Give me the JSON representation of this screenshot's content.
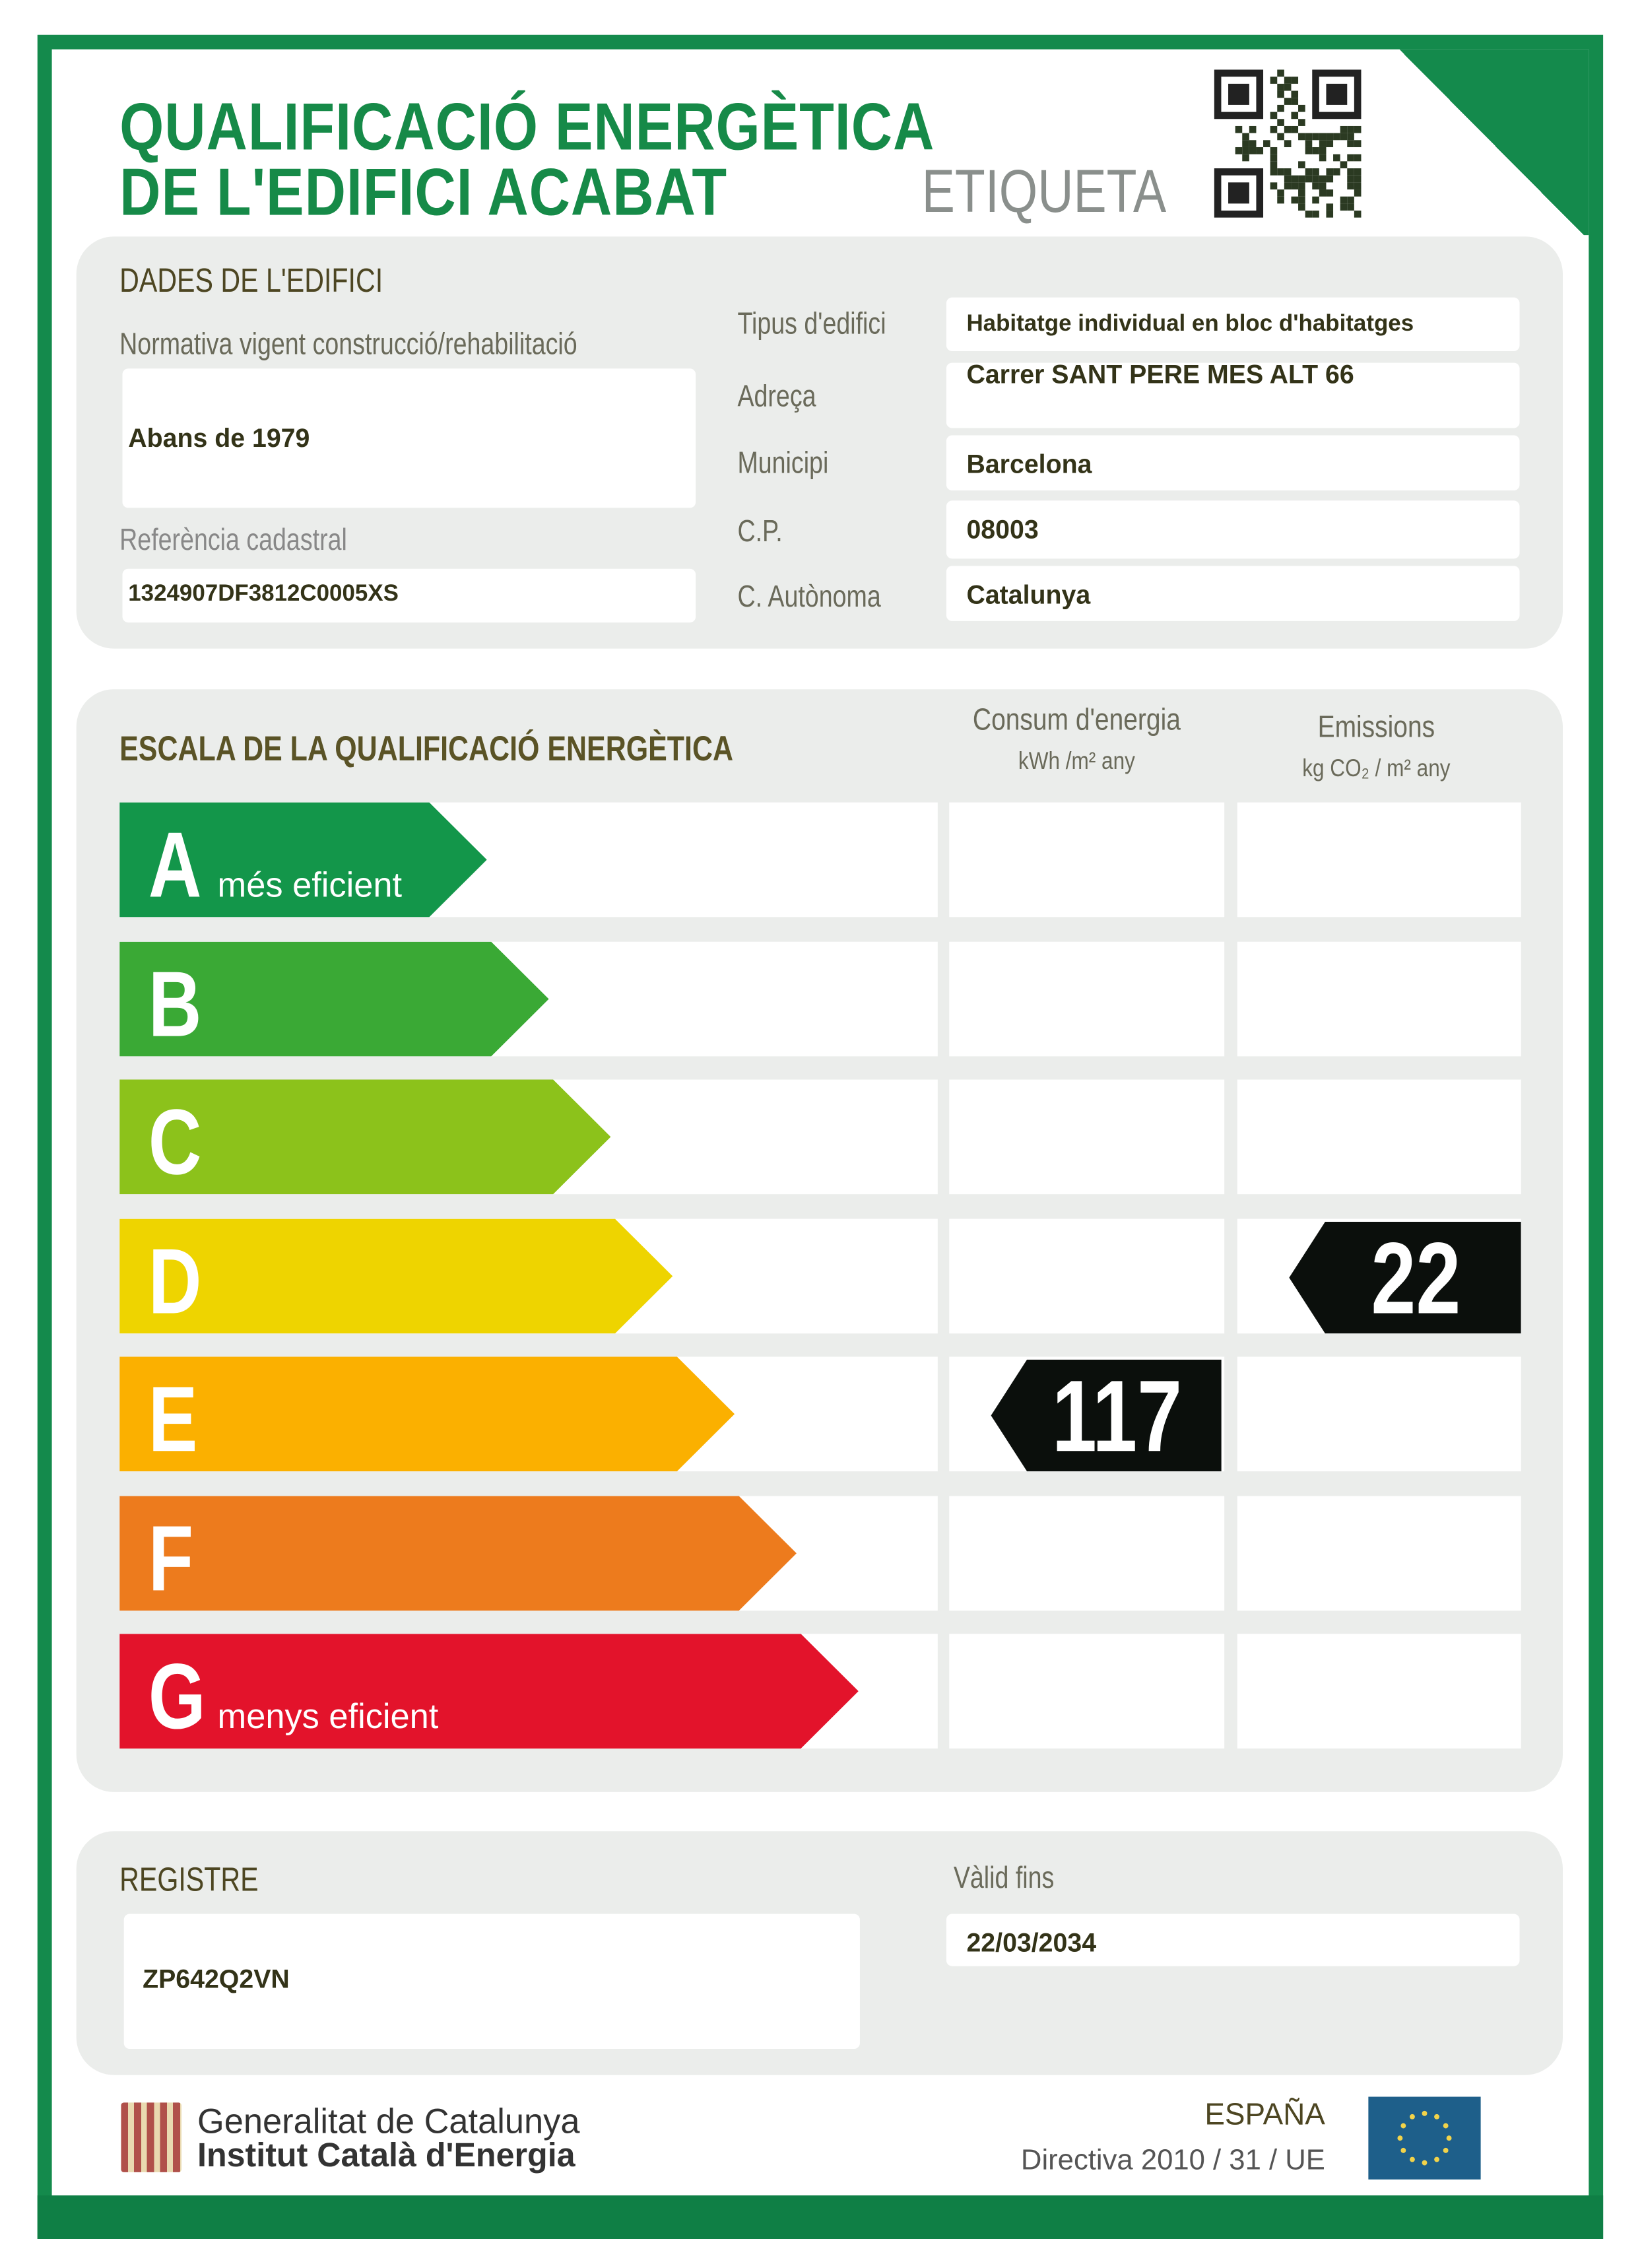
{
  "header": {
    "title_line1": "QUALIFICACIÓ ENERGÈTICA",
    "title_line2": "DE L'EDIFICI ACABAT",
    "label": "ETIQUETA",
    "qr_icon": "qr-code-icon"
  },
  "building": {
    "section_title": "DADES DE L'EDIFICI",
    "normativa_label": "Normativa vigent construcció/rehabilitació",
    "normativa_value": "Abans de 1979",
    "cadastral_label": "Referència cadastral",
    "cadastral_value": "1324907DF3812C0005XS",
    "fields": [
      {
        "label": "Tipus d'edifici",
        "value": "Habitatge individual en bloc d'habitatges"
      },
      {
        "label": "Adreça",
        "value": "Carrer SANT PERE MES ALT  66"
      },
      {
        "label": "Municipi",
        "value": "Barcelona"
      },
      {
        "label": "C.P.",
        "value": "08003"
      },
      {
        "label": "C. Autònoma",
        "value": "Catalunya"
      }
    ]
  },
  "scale": {
    "section_title": "ESCALA DE LA QUALIFICACIÓ ENERGÈTICA",
    "consum_header": "Consum d'energia",
    "consum_unit": "kWh /m² any",
    "emissions_header": "Emissions",
    "emissions_unit": "kg CO₂ / m² any",
    "classes": [
      {
        "letter": "A",
        "sub": "més eficient",
        "color": "#13964a"
      },
      {
        "letter": "B",
        "sub": "",
        "color": "#3aa935"
      },
      {
        "letter": "C",
        "sub": "",
        "color": "#8cc21b"
      },
      {
        "letter": "D",
        "sub": "",
        "color": "#eed400"
      },
      {
        "letter": "E",
        "sub": "",
        "color": "#fbb000"
      },
      {
        "letter": "F",
        "sub": "",
        "color": "#ed7b1d"
      },
      {
        "letter": "G",
        "sub": "menys eficient",
        "color": "#e3132b"
      }
    ],
    "consum_value": "117",
    "consum_class": "E",
    "emissions_value": "22",
    "emissions_class": "D"
  },
  "registry": {
    "label": "REGISTRE",
    "value": "ZP642Q2VN",
    "valid_label": "Vàlid fins",
    "valid_value": "22/03/2034"
  },
  "footer": {
    "org_line1": "Generalitat de Catalunya",
    "org_line2": "Institut Català d'Energia",
    "country": "ESPAÑA",
    "directive": "Directiva 2010 / 31 / UE",
    "eu_flag": "eu-flag-icon",
    "coat": "senyera-icon"
  }
}
